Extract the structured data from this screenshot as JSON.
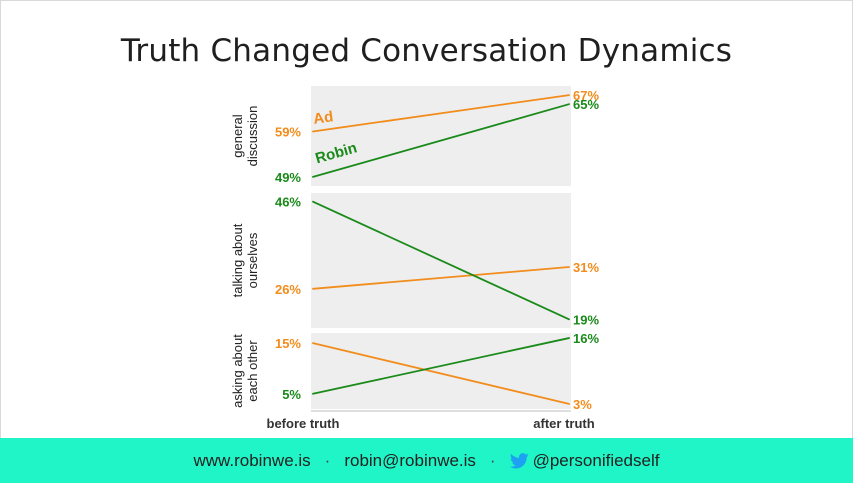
{
  "chart_data": {
    "type": "line",
    "title": "Truth Changed Conversation Dynamics",
    "x": [
      "before truth",
      "after truth"
    ],
    "panels": [
      {
        "ylabel": "general discussion",
        "series": [
          {
            "name": "Ad",
            "color": "#f28c1c",
            "values": [
              59,
              67
            ],
            "labels": [
              "59%",
              "67%"
            ]
          },
          {
            "name": "Robin",
            "color": "#1a8a1a",
            "values": [
              49,
              65
            ],
            "labels": [
              "49%",
              "65%"
            ]
          }
        ]
      },
      {
        "ylabel": "talking about ourselves",
        "series": [
          {
            "name": "Ad",
            "color": "#f28c1c",
            "values": [
              26,
              31
            ],
            "labels": [
              "26%",
              "31%"
            ]
          },
          {
            "name": "Robin",
            "color": "#1a8a1a",
            "values": [
              46,
              19
            ],
            "labels": [
              "46%",
              "19%"
            ]
          }
        ]
      },
      {
        "ylabel": "asking about each other",
        "series": [
          {
            "name": "Ad",
            "color": "#f28c1c",
            "values": [
              15,
              3
            ],
            "labels": [
              "15%",
              "3%"
            ]
          },
          {
            "name": "Robin",
            "color": "#1a8a1a",
            "values": [
              5,
              16
            ],
            "labels": [
              "5%",
              "16%"
            ]
          }
        ]
      }
    ],
    "grid": false
  },
  "footer": {
    "website": "www.robinwe.is",
    "email": "robin@robinwe.is",
    "twitter": "@personifiedself",
    "separator": "·",
    "twitter_icon": "bird-icon"
  }
}
